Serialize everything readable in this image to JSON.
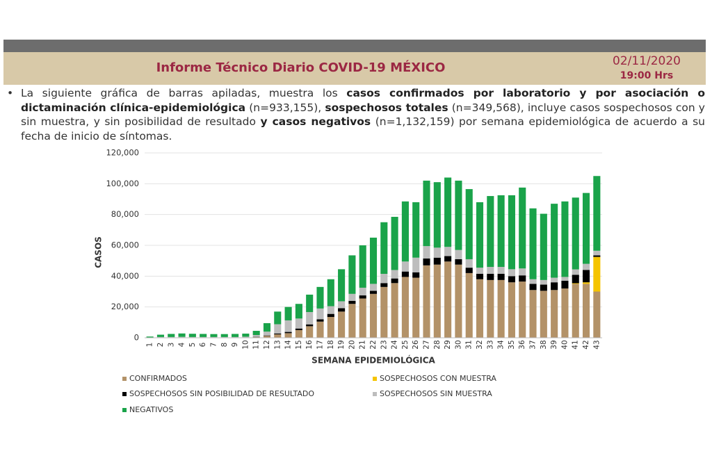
{
  "header": {
    "title": "Informe Técnico Diario COVID-19 MÉXICO",
    "date": "02/11/2020",
    "time": "19:00 Hrs"
  },
  "paragraph": [
    {
      "text": "La siguiente gráfica de barras apiladas, muestra los ",
      "bold": false
    },
    {
      "text": "casos confirmados por laboratorio y por asociación o dictaminación clínica-epidemiológica",
      "bold": true
    },
    {
      "text": " (n=933,155), ",
      "bold": false
    },
    {
      "text": "sospechosos totales",
      "bold": true
    },
    {
      "text": " (n=349,568), incluye casos sospechosos con y sin muestra, y sin posibilidad de resultado ",
      "bold": false
    },
    {
      "text": "y casos negativos",
      "bold": true
    },
    {
      "text": " (n=1,132,159) por semana epidemiológica de acuerdo a su fecha de inicio de síntomas.",
      "bold": false
    }
  ],
  "chart_data": {
    "type": "stacked_bar",
    "x_label": "SEMANA EPIDEMIOLÓGICA",
    "y_label": "CASOS",
    "categories": [
      "1",
      "2",
      "3",
      "4",
      "5",
      "6",
      "7",
      "8",
      "9",
      "10",
      "11",
      "12",
      "13",
      "14",
      "15",
      "16",
      "17",
      "18",
      "19",
      "20",
      "21",
      "22",
      "23",
      "24",
      "25",
      "26",
      "27",
      "28",
      "29",
      "30",
      "31",
      "32",
      "33",
      "34",
      "35",
      "36",
      "37",
      "38",
      "39",
      "40",
      "41",
      "42",
      "43"
    ],
    "series": [
      {
        "name": "CONFIRMADOS",
        "color": "#b39268",
        "values": [
          0,
          0,
          0,
          0,
          0,
          0,
          0,
          0,
          0,
          100,
          400,
          1200,
          2200,
          3000,
          5000,
          7500,
          10500,
          13500,
          17000,
          22000,
          25500,
          28500,
          33000,
          35500,
          39500,
          39000,
          47000,
          47500,
          49500,
          47500,
          42000,
          38000,
          37500,
          37500,
          36000,
          36500,
          31000,
          30500,
          31000,
          32000,
          35000,
          35000,
          30000
        ]
      },
      {
        "name": "SOSPECHOSOS CON MUESTRA",
        "color": "#f5c400",
        "values": [
          0,
          0,
          0,
          0,
          0,
          0,
          0,
          0,
          0,
          0,
          0,
          0,
          0,
          0,
          0,
          0,
          0,
          0,
          0,
          0,
          0,
          0,
          0,
          0,
          0,
          0,
          0,
          0,
          0,
          0,
          0,
          0,
          0,
          0,
          0,
          0,
          0,
          0,
          0,
          0,
          400,
          1000,
          22500
        ]
      },
      {
        "name": "SOSPECHOSOS SIN POSIBILIDAD DE RESULTADO",
        "color": "#000000",
        "values": [
          0,
          0,
          0,
          0,
          0,
          0,
          0,
          0,
          0,
          0,
          200,
          300,
          600,
          800,
          1000,
          1200,
          1500,
          2000,
          2200,
          2000,
          2000,
          2000,
          2500,
          3000,
          3500,
          3500,
          4500,
          4500,
          3500,
          3500,
          3500,
          3500,
          4000,
          4000,
          4000,
          4000,
          4000,
          4000,
          5000,
          5000,
          5500,
          8000,
          1000
        ]
      },
      {
        "name": "SOSPECHOSOS SIN MUESTRA",
        "color": "#bdbdbd",
        "values": [
          200,
          500,
          500,
          600,
          500,
          500,
          500,
          500,
          500,
          600,
          1200,
          2500,
          6000,
          7500,
          6500,
          8000,
          7000,
          5000,
          4500,
          4500,
          5000,
          4500,
          6000,
          5500,
          6500,
          9500,
          8000,
          6500,
          6000,
          6000,
          5500,
          4000,
          4500,
          4500,
          4500,
          4500,
          3000,
          3000,
          3000,
          2500,
          3500,
          4000,
          3000
        ]
      },
      {
        "name": "NEGATIVOS",
        "color": "#1aa34a",
        "values": [
          600,
          1500,
          2000,
          2200,
          2100,
          2000,
          1900,
          1900,
          2000,
          2000,
          2700,
          5500,
          8200,
          8700,
          9500,
          11300,
          14000,
          17500,
          20800,
          25000,
          27500,
          30000,
          33500,
          34500,
          39000,
          36000,
          42500,
          42500,
          45000,
          45000,
          45500,
          42500,
          46000,
          46500,
          48000,
          52500,
          46000,
          43000,
          48000,
          49000,
          46600,
          46000,
          48500
        ]
      }
    ],
    "ylim": [
      0,
      120000
    ],
    "yticks": [
      0,
      {
        "value": 20000,
        "label": "20,000"
      },
      {
        "value": 40000,
        "label": "40,000"
      },
      {
        "value": 60000,
        "label": "60,000"
      },
      {
        "value": 80000,
        "label": "80,000"
      },
      {
        "value": 100000,
        "label": "100,000"
      },
      {
        "value": 120000,
        "label": "120,000"
      }
    ],
    "grid": true
  }
}
